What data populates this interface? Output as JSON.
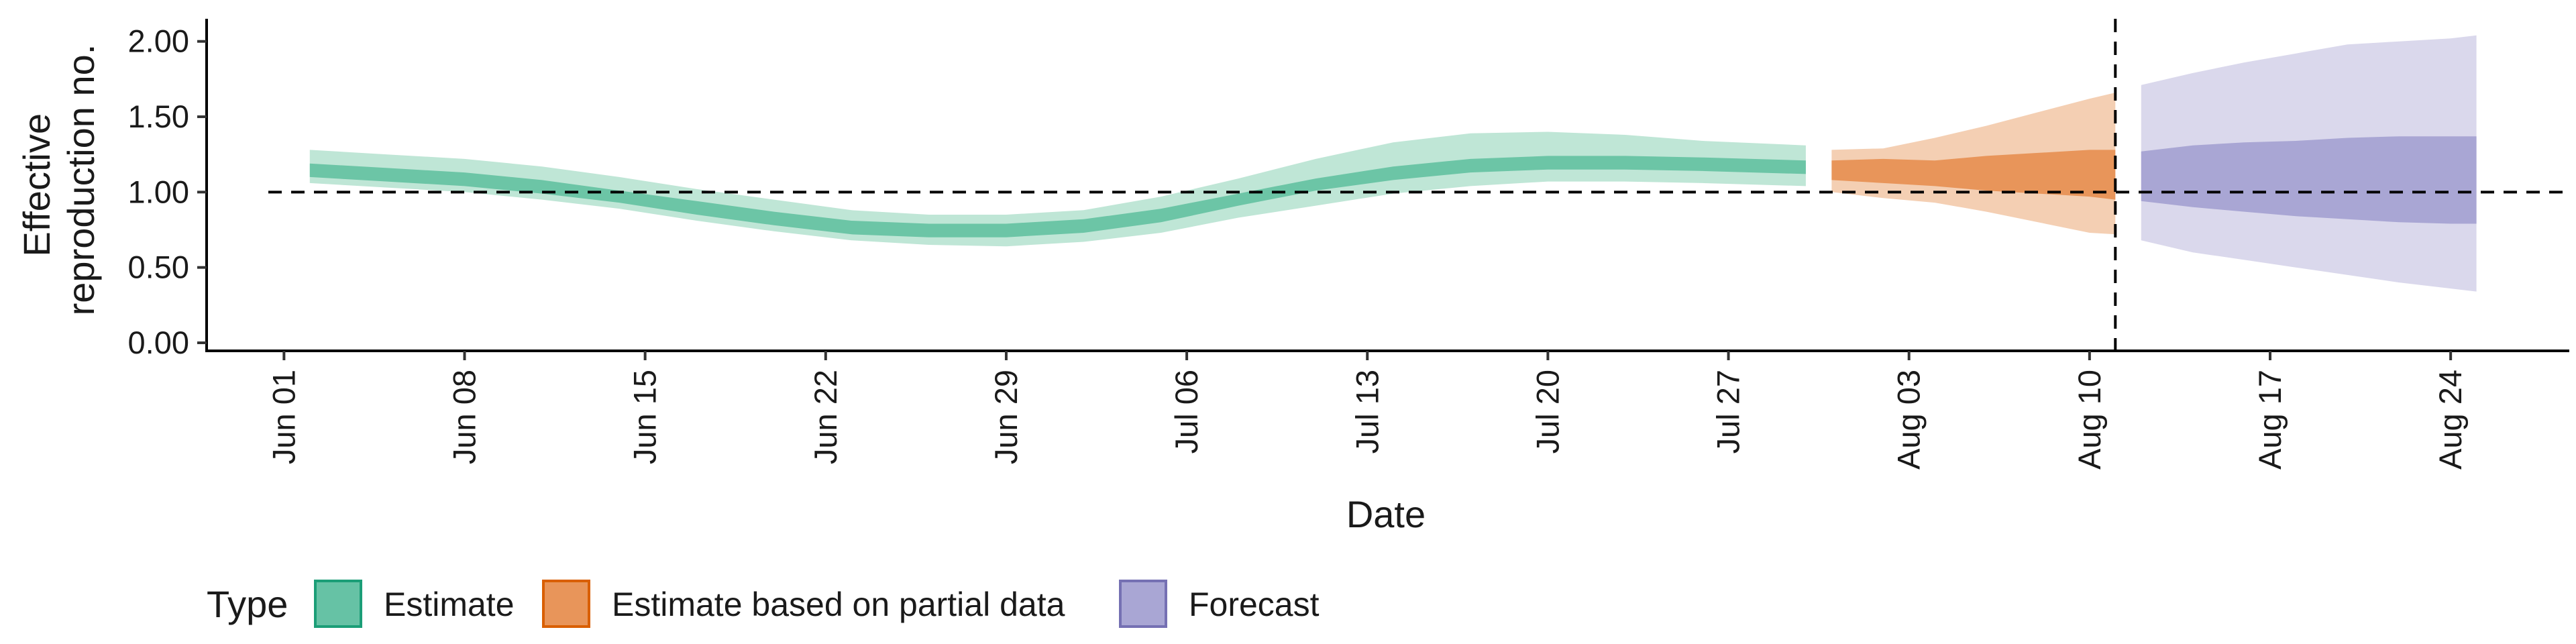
{
  "chart_data": {
    "type": "area",
    "xlabel": "Date",
    "ylabel_lines": [
      "Effective",
      "reproduction no."
    ],
    "y_ticks": [
      "0.00",
      "0.50",
      "1.00",
      "1.50",
      "2.00"
    ],
    "ylim": [
      0,
      2.15
    ],
    "x_start": "2020-05-29",
    "x_ticks": [
      {
        "label": "Jun 01",
        "x": "2020-06-01"
      },
      {
        "label": "Jun 08",
        "x": "2020-06-08"
      },
      {
        "label": "Jun 15",
        "x": "2020-06-15"
      },
      {
        "label": "Jun 22",
        "x": "2020-06-22"
      },
      {
        "label": "Jun 29",
        "x": "2020-06-29"
      },
      {
        "label": "Jul 06",
        "x": "2020-07-06"
      },
      {
        "label": "Jul 13",
        "x": "2020-07-13"
      },
      {
        "label": "Jul 20",
        "x": "2020-07-20"
      },
      {
        "label": "Jul 27",
        "x": "2020-07-27"
      },
      {
        "label": "Aug 03",
        "x": "2020-08-03"
      },
      {
        "label": "Aug 10",
        "x": "2020-08-10"
      },
      {
        "label": "Aug 17",
        "x": "2020-08-17"
      },
      {
        "label": "Aug 24",
        "x": "2020-08-24"
      }
    ],
    "reference_hline": 1.0,
    "reference_vline": "2020-08-11",
    "grid": false,
    "legend": {
      "title": "Type",
      "position": "bottom-left",
      "items": [
        {
          "label": "Estimate",
          "fill": "#66c2a5",
          "stroke": "#1b9e77"
        },
        {
          "label": "Estimate based on partial data",
          "fill": "#e8955a",
          "stroke": "#d95f02"
        },
        {
          "label": "Forecast",
          "fill": "#a9a6d4",
          "stroke": "#7570b3"
        }
      ]
    },
    "series": [
      {
        "name": "Estimate",
        "outer_color": "#bfe6d6",
        "inner_color": "#6cc5a6",
        "x": [
          "2020-06-02",
          "2020-06-05",
          "2020-06-08",
          "2020-06-11",
          "2020-06-14",
          "2020-06-17",
          "2020-06-20",
          "2020-06-23",
          "2020-06-26",
          "2020-06-29",
          "2020-07-02",
          "2020-07-05",
          "2020-07-08",
          "2020-07-11",
          "2020-07-14",
          "2020-07-17",
          "2020-07-20",
          "2020-07-23",
          "2020-07-26",
          "2020-07-30"
        ],
        "lower_90": [
          1.06,
          1.03,
          1.0,
          0.95,
          0.89,
          0.81,
          0.74,
          0.68,
          0.65,
          0.64,
          0.67,
          0.73,
          0.83,
          0.91,
          0.99,
          1.04,
          1.07,
          1.07,
          1.06,
          1.04
        ],
        "upper_90": [
          1.28,
          1.25,
          1.22,
          1.17,
          1.1,
          1.02,
          0.95,
          0.88,
          0.85,
          0.85,
          0.88,
          0.97,
          1.09,
          1.22,
          1.33,
          1.39,
          1.4,
          1.38,
          1.34,
          1.31
        ],
        "lower_50": [
          1.1,
          1.07,
          1.04,
          0.99,
          0.93,
          0.85,
          0.78,
          0.72,
          0.7,
          0.7,
          0.73,
          0.8,
          0.91,
          1.01,
          1.08,
          1.13,
          1.15,
          1.15,
          1.14,
          1.12
        ],
        "upper_50": [
          1.19,
          1.16,
          1.13,
          1.08,
          1.01,
          0.94,
          0.87,
          0.81,
          0.79,
          0.79,
          0.82,
          0.89,
          0.99,
          1.09,
          1.17,
          1.22,
          1.24,
          1.24,
          1.23,
          1.21
        ]
      },
      {
        "name": "Estimate based on partial data",
        "outer_color": "#f4cfb3",
        "inner_color": "#e8955a",
        "x": [
          "2020-07-31",
          "2020-08-02",
          "2020-08-04",
          "2020-08-06",
          "2020-08-08",
          "2020-08-10",
          "2020-08-11"
        ],
        "lower_90": [
          1.0,
          0.96,
          0.93,
          0.87,
          0.8,
          0.73,
          0.72
        ],
        "upper_90": [
          1.28,
          1.29,
          1.36,
          1.44,
          1.53,
          1.62,
          1.66
        ],
        "lower_50": [
          1.08,
          1.06,
          1.04,
          1.01,
          0.99,
          0.97,
          0.95
        ],
        "upper_50": [
          1.21,
          1.22,
          1.21,
          1.24,
          1.26,
          1.28,
          1.28
        ]
      },
      {
        "name": "Forecast",
        "outer_color": "#dad8ec",
        "inner_color": "#a9a6d4",
        "x": [
          "2020-08-12",
          "2020-08-14",
          "2020-08-16",
          "2020-08-18",
          "2020-08-20",
          "2020-08-22",
          "2020-08-24",
          "2020-08-25"
        ],
        "lower_90": [
          0.68,
          0.6,
          0.55,
          0.5,
          0.45,
          0.4,
          0.36,
          0.34
        ],
        "upper_90": [
          1.71,
          1.79,
          1.86,
          1.92,
          1.98,
          2.0,
          2.02,
          2.04
        ],
        "lower_50": [
          0.94,
          0.9,
          0.87,
          0.84,
          0.82,
          0.8,
          0.79,
          0.79
        ],
        "upper_50": [
          1.27,
          1.31,
          1.33,
          1.34,
          1.36,
          1.37,
          1.37,
          1.37
        ]
      }
    ]
  }
}
